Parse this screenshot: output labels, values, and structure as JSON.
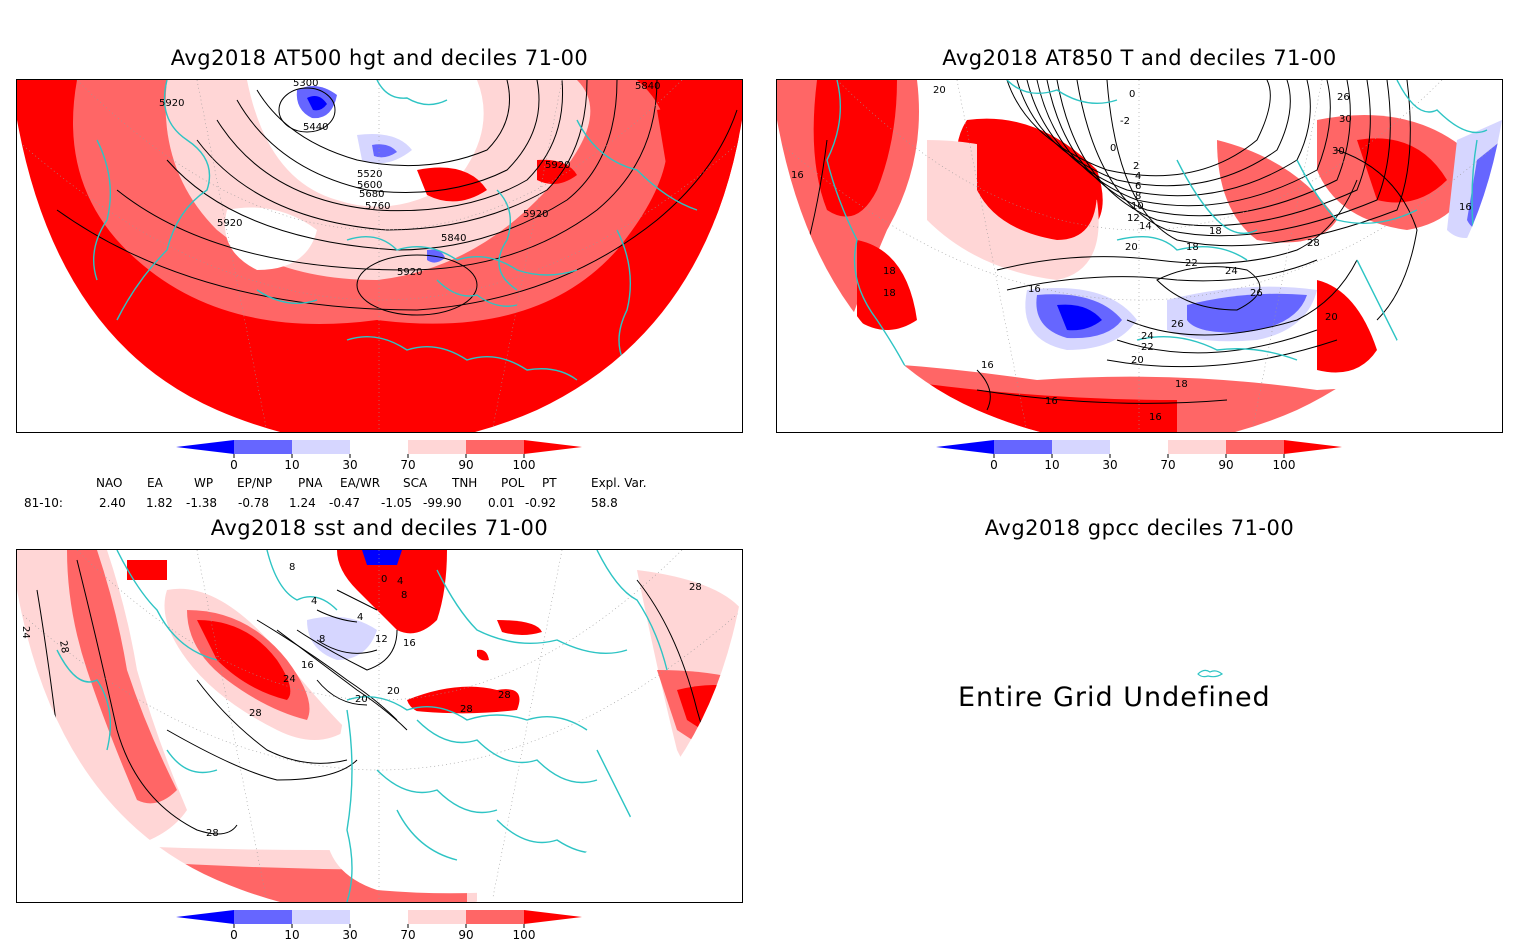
{
  "panels": {
    "at500": {
      "title": "Avg2018 AT500 hgt and deciles 71-00",
      "contour_labels": [
        "5920",
        "5300",
        "5440",
        "5920",
        "5520",
        "5600",
        "5680",
        "5760",
        "5920",
        "5920",
        "5840",
        "5920",
        "5840",
        "5920"
      ]
    },
    "at850": {
      "title": "Avg2018 AT850 T and deciles 71-00",
      "contour_labels": [
        "20",
        "0",
        "-2",
        "0",
        "2",
        "4",
        "6",
        "8",
        "10",
        "12",
        "14",
        "16",
        "18",
        "20",
        "22",
        "24",
        "26",
        "28",
        "26",
        "24",
        "22",
        "20",
        "18",
        "16",
        "16",
        "16",
        "18",
        "18",
        "18",
        "20",
        "28",
        "30",
        "30",
        "26",
        "16",
        "16"
      ]
    },
    "sst": {
      "title": "Avg2018 sst and deciles 71-00",
      "contour_labels": [
        "24",
        "28",
        "8",
        "4",
        "8",
        "12",
        "16",
        "20",
        "24",
        "28",
        "20",
        "4",
        "0",
        "4",
        "8",
        "16",
        "28",
        "28",
        "28",
        "28"
      ]
    },
    "gpcc": {
      "title": "Avg2018 gpcc deciles 71-00",
      "message": "Entire Grid Undefined"
    }
  },
  "colorbar": {
    "ticks": [
      "0",
      "10",
      "30",
      "70",
      "90",
      "100"
    ],
    "colors": [
      "#0000ff",
      "#6666ff",
      "#d6d6ff",
      "#ffffff",
      "#ffd6d6",
      "#ff6666",
      "#ff0000"
    ]
  },
  "indices": {
    "headers": [
      "NAO",
      "EA",
      "WP",
      "EP/NP",
      "PNA",
      "EA/WR",
      "SCA",
      "TNH",
      "POL",
      "PT",
      "Expl. Var."
    ],
    "row_label": "81-10:",
    "values": [
      "2.40",
      "1.82",
      "-1.38",
      "-0.78",
      "1.24",
      "-0.47",
      "-1.05",
      "-99.90",
      "0.01",
      "-0.92",
      "58.8"
    ]
  },
  "colors": {
    "red": "#ff0000",
    "light_red": "#ff6666",
    "pink": "#ffd6d6",
    "light_blue": "#d6d6ff",
    "mid_blue": "#6666ff",
    "blue": "#0000ff",
    "coast": "#2ec4c4"
  }
}
